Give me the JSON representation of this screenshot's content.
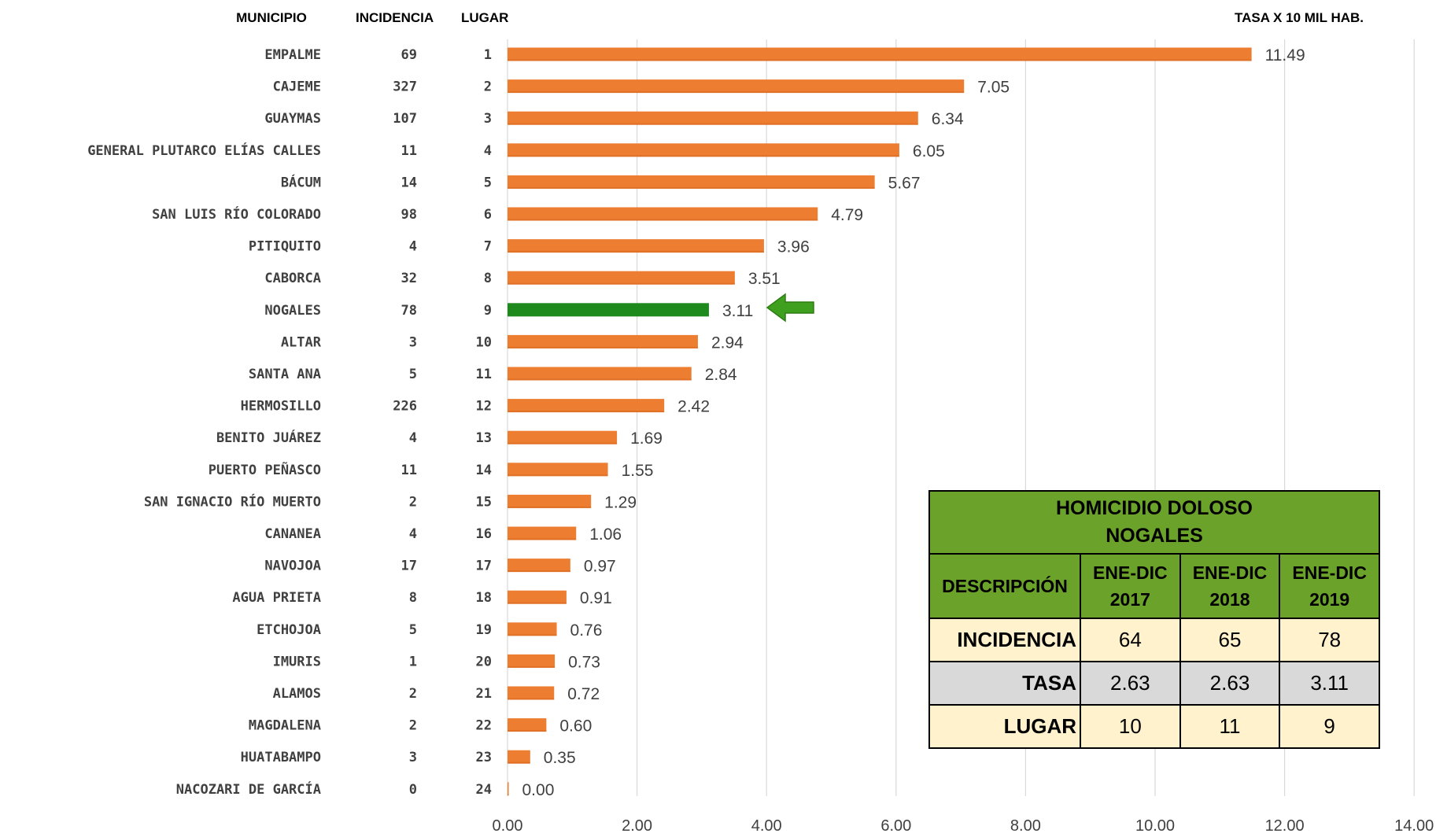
{
  "headers": {
    "municipio": "MUNICIPIO",
    "incidencia": "INCIDENCIA",
    "lugar": "LUGAR",
    "tasa": "TASA X 10 MIL HAB."
  },
  "colors": {
    "bar": "#ed7d31",
    "highlight_bar": "#1e8a1e",
    "arrow": "#3fa01f",
    "table_header": "#6aa22a",
    "row_beige": "#fff2cc",
    "row_gray": "#d9d9d9"
  },
  "chart_data": {
    "type": "bar",
    "orientation": "horizontal",
    "highlight": "NOGALES",
    "xlim": [
      0,
      14
    ],
    "xticks": [
      "0.00",
      "2.00",
      "4.00",
      "6.00",
      "8.00",
      "10.00",
      "12.00",
      "14.00"
    ],
    "grid": true,
    "rows": [
      {
        "municipio": "EMPALME",
        "incidencia": "69",
        "lugar": "1",
        "tasa": 11.49,
        "label": "11.49"
      },
      {
        "municipio": "CAJEME",
        "incidencia": "327",
        "lugar": "2",
        "tasa": 7.05,
        "label": "7.05"
      },
      {
        "municipio": "GUAYMAS",
        "incidencia": "107",
        "lugar": "3",
        "tasa": 6.34,
        "label": "6.34"
      },
      {
        "municipio": "GENERAL PLUTARCO ELÍAS CALLES",
        "incidencia": "11",
        "lugar": "4",
        "tasa": 6.05,
        "label": "6.05"
      },
      {
        "municipio": "BÁCUM",
        "incidencia": "14",
        "lugar": "5",
        "tasa": 5.67,
        "label": "5.67"
      },
      {
        "municipio": "SAN LUIS RÍO COLORADO",
        "incidencia": "98",
        "lugar": "6",
        "tasa": 4.79,
        "label": "4.79"
      },
      {
        "municipio": "PITIQUITO",
        "incidencia": "4",
        "lugar": "7",
        "tasa": 3.96,
        "label": "3.96"
      },
      {
        "municipio": "CABORCA",
        "incidencia": "32",
        "lugar": "8",
        "tasa": 3.51,
        "label": "3.51"
      },
      {
        "municipio": "NOGALES",
        "incidencia": "78",
        "lugar": "9",
        "tasa": 3.11,
        "label": "3.11"
      },
      {
        "municipio": "ALTAR",
        "incidencia": "3",
        "lugar": "10",
        "tasa": 2.94,
        "label": "2.94"
      },
      {
        "municipio": "SANTA ANA",
        "incidencia": "5",
        "lugar": "11",
        "tasa": 2.84,
        "label": "2.84"
      },
      {
        "municipio": "HERMOSILLO",
        "incidencia": "226",
        "lugar": "12",
        "tasa": 2.42,
        "label": "2.42"
      },
      {
        "municipio": "BENITO JUÁREZ",
        "incidencia": "4",
        "lugar": "13",
        "tasa": 1.69,
        "label": "1.69"
      },
      {
        "municipio": "PUERTO PEÑASCO",
        "incidencia": "11",
        "lugar": "14",
        "tasa": 1.55,
        "label": "1.55"
      },
      {
        "municipio": "SAN IGNACIO RÍO MUERTO",
        "incidencia": "2",
        "lugar": "15",
        "tasa": 1.29,
        "label": "1.29"
      },
      {
        "municipio": "CANANEA",
        "incidencia": "4",
        "lugar": "16",
        "tasa": 1.06,
        "label": "1.06"
      },
      {
        "municipio": "NAVOJOA",
        "incidencia": "17",
        "lugar": "17",
        "tasa": 0.97,
        "label": "0.97"
      },
      {
        "municipio": "AGUA PRIETA",
        "incidencia": "8",
        "lugar": "18",
        "tasa": 0.91,
        "label": "0.91"
      },
      {
        "municipio": "ETCHOJOA",
        "incidencia": "5",
        "lugar": "19",
        "tasa": 0.76,
        "label": "0.76"
      },
      {
        "municipio": "IMURIS",
        "incidencia": "1",
        "lugar": "20",
        "tasa": 0.73,
        "label": "0.73"
      },
      {
        "municipio": "ALAMOS",
        "incidencia": "2",
        "lugar": "21",
        "tasa": 0.72,
        "label": "0.72"
      },
      {
        "municipio": "MAGDALENA",
        "incidencia": "2",
        "lugar": "22",
        "tasa": 0.6,
        "label": "0.60"
      },
      {
        "municipio": "HUATABAMPO",
        "incidencia": "3",
        "lugar": "23",
        "tasa": 0.35,
        "label": "0.35"
      },
      {
        "municipio": "NACOZARI DE GARCÍA",
        "incidencia": "0",
        "lugar": "24",
        "tasa": 0.0,
        "label": "0.00"
      }
    ]
  },
  "summary_table": {
    "title_line1": "HOMICIDIO DOLOSO",
    "title_line2": "NOGALES",
    "descripcion": "DESCRIPCIÓN",
    "periods": [
      {
        "line1": "ENE-DIC",
        "line2": "2017"
      },
      {
        "line1": "ENE-DIC",
        "line2": "2018"
      },
      {
        "line1": "ENE-DIC",
        "line2": "2019"
      }
    ],
    "rows": [
      {
        "label": "INCIDENCIA",
        "values": [
          "64",
          "65",
          "78"
        ]
      },
      {
        "label": "TASA",
        "values": [
          "2.63",
          "2.63",
          "3.11"
        ]
      },
      {
        "label": "LUGAR",
        "values": [
          "10",
          "11",
          "9"
        ]
      }
    ]
  }
}
